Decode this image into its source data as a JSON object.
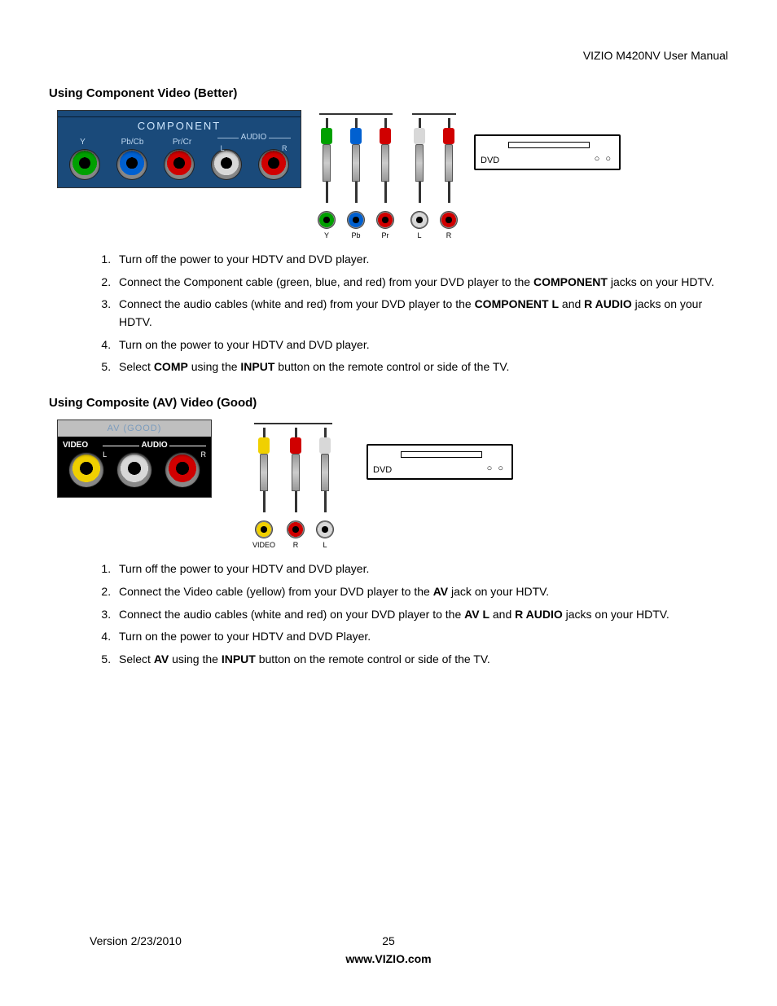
{
  "header": {
    "title": "VIZIO M420NV User Manual"
  },
  "section1": {
    "heading": "Using Component Video (Better)",
    "panel": {
      "title": "COMPONENT",
      "labels": [
        "Y",
        "Pb/Cb",
        "Pr/Cr",
        "L",
        "R"
      ],
      "audio_label": "AUDIO",
      "jack_colors": [
        "#00a000",
        "#0060d0",
        "#d00000",
        "#d8d8d8",
        "#d00000"
      ]
    },
    "cables5": {
      "colors": [
        "#00a000",
        "#0060d0",
        "#d00000",
        "#d8d8d8",
        "#d00000"
      ],
      "labels": [
        "Y",
        "Pb",
        "Pr",
        "L",
        "R"
      ]
    },
    "dvd": {
      "label": "DVD"
    },
    "steps": [
      [
        {
          "t": "Turn off the power to your HDTV and DVD player."
        }
      ],
      [
        {
          "t": "Connect the Component cable (green, blue, and red) from your DVD player to the "
        },
        {
          "b": "COMPONENT"
        },
        {
          "t": " jacks on your HDTV."
        }
      ],
      [
        {
          "t": "Connect the audio cables (white and red) from your DVD player to the "
        },
        {
          "b": "COMPONENT L"
        },
        {
          "t": " and "
        },
        {
          "b": "R AUDIO"
        },
        {
          "t": " jacks on your HDTV."
        }
      ],
      [
        {
          "t": "Turn on the power to your HDTV and DVD player."
        }
      ],
      [
        {
          "t": "Select "
        },
        {
          "b": "COMP"
        },
        {
          "t": " using the "
        },
        {
          "b": "INPUT"
        },
        {
          "t": " button on the remote control or side of the TV."
        }
      ]
    ]
  },
  "section2": {
    "heading": "Using Composite (AV) Video (Good)",
    "panel": {
      "title": "AV (GOOD)",
      "video_label": "VIDEO",
      "audio_label": "AUDIO",
      "lr": {
        "l": "L",
        "r": "R"
      },
      "jack_colors": [
        "#f0d000",
        "#d8d8d8",
        "#d00000"
      ]
    },
    "cables3": {
      "colors": [
        "#f0d000",
        "#d00000",
        "#d8d8d8"
      ],
      "labels": [
        "VIDEO",
        "R",
        "L"
      ]
    },
    "dvd": {
      "label": "DVD"
    },
    "steps": [
      [
        {
          "t": "Turn off the power to your HDTV and DVD player."
        }
      ],
      [
        {
          "t": "Connect the Video cable (yellow) from your DVD player to the "
        },
        {
          "b": "AV"
        },
        {
          "t": " jack on your HDTV."
        }
      ],
      [
        {
          "t": "Connect the audio cables (white and red) on your DVD player to the "
        },
        {
          "b": "AV L"
        },
        {
          "t": " and "
        },
        {
          "b": "R AUDIO"
        },
        {
          "t": " jacks on your HDTV."
        }
      ],
      [
        {
          "t": "Turn on the power to your HDTV and DVD Player."
        }
      ],
      [
        {
          "t": "Select "
        },
        {
          "b": "AV"
        },
        {
          "t": " using the "
        },
        {
          "b": "INPUT"
        },
        {
          "t": " button on the remote control or side of the TV."
        }
      ]
    ]
  },
  "footer": {
    "version": "Version 2/23/2010",
    "page": "25",
    "url": "www.VIZIO.com"
  }
}
